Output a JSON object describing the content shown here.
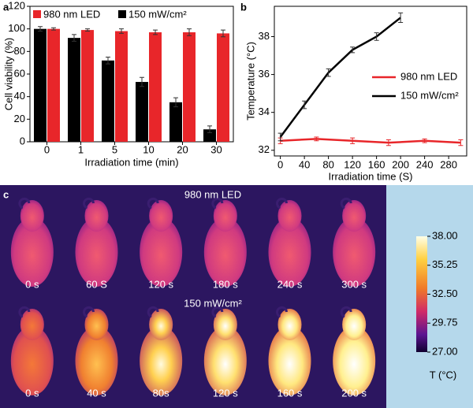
{
  "chart_data": [
    {
      "type": "bar",
      "panel": "a",
      "xlabel": "Irradiation time (min)",
      "ylabel": "Cell viability (%)",
      "categories": [
        "0",
        "1",
        "5",
        "10",
        "20",
        "30"
      ],
      "series": [
        {
          "name": "980 nm LED",
          "color": "#e8262a",
          "values": [
            100,
            99,
            98,
            97,
            97,
            96
          ],
          "errors": [
            1,
            1,
            2,
            2,
            3,
            3
          ]
        },
        {
          "name": "150 mW/cm²",
          "color": "#000000",
          "values": [
            100,
            92,
            72,
            53,
            35,
            11
          ],
          "errors": [
            2,
            3,
            3,
            4,
            4,
            3
          ]
        }
      ],
      "ylim": [
        0,
        120
      ],
      "yticks": [
        0,
        20,
        40,
        60,
        80,
        100,
        120
      ],
      "legend": "top"
    },
    {
      "type": "line",
      "panel": "b",
      "xlabel": "Irradiation time (S)",
      "ylabel": "Temperature (°C)",
      "series": [
        {
          "name": "980 nm LED",
          "color": "#e8262a",
          "x": [
            0,
            60,
            120,
            180,
            240,
            300
          ],
          "values": [
            32.5,
            32.6,
            32.5,
            32.4,
            32.5,
            32.4
          ],
          "errors": [
            0.15,
            0.1,
            0.15,
            0.15,
            0.1,
            0.15
          ]
        },
        {
          "name": "150 mW/cm²",
          "color": "#000000",
          "x": [
            0,
            40,
            80,
            120,
            160,
            200
          ],
          "values": [
            32.7,
            34.4,
            36.1,
            37.3,
            38.0,
            39.0
          ],
          "errors": [
            0.2,
            0.2,
            0.2,
            0.15,
            0.2,
            0.25
          ]
        }
      ],
      "xlim": [
        -10,
        310
      ],
      "xticks": [
        0,
        40,
        80,
        120,
        160,
        200,
        240,
        280
      ],
      "ylim": [
        31.7,
        39.6
      ],
      "yticks": [
        32,
        34,
        36,
        38
      ],
      "legend": "right"
    }
  ],
  "thermal": {
    "panel": "c",
    "rows": [
      {
        "title": "980 nm LED",
        "frames": [
          "0 s",
          "60 S",
          "120 s",
          "180 s",
          "240 s",
          "300 s"
        ]
      },
      {
        "title": "150 mW/cm²",
        "frames": [
          "0 s",
          "40 s",
          "80s",
          "120 s",
          "160 s",
          "200 s"
        ]
      }
    ],
    "colorbar": {
      "label": "T (°C)",
      "lim": [
        27,
        38
      ],
      "ticks": [
        {
          "value": 38,
          "label": "38.00"
        },
        {
          "value": 35.25,
          "label": "35.25"
        },
        {
          "value": 32.5,
          "label": "32.50"
        },
        {
          "value": 29.75,
          "label": "29.75"
        },
        {
          "value": 27,
          "label": "27.00"
        }
      ]
    }
  }
}
